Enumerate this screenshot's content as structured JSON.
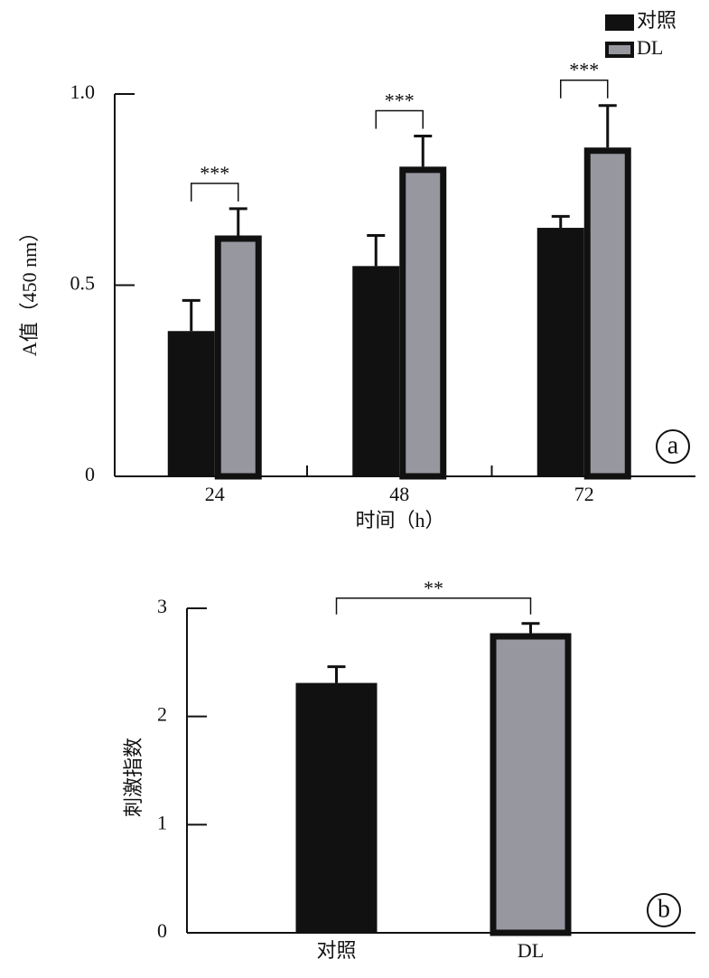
{
  "chart_data": [
    {
      "type": "bar",
      "panel_label": "a",
      "y_label": "A值（450 nm）",
      "x_label": "时间（h）",
      "categories": [
        "24",
        "48",
        "72"
      ],
      "series": [
        {
          "name": "对照",
          "color": "#111111",
          "values": [
            0.38,
            0.55,
            0.65
          ],
          "errors": [
            0.08,
            0.08,
            0.03
          ]
        },
        {
          "name": "DL",
          "color": "#97979f",
          "values": [
            0.63,
            0.81,
            0.86
          ],
          "errors": [
            0.07,
            0.08,
            0.11
          ]
        }
      ],
      "annotations": [
        "***",
        "***",
        "***"
      ],
      "ylim": [
        0,
        1
      ],
      "yticks": [
        0,
        0.5,
        {
          "value": 1,
          "label": "1.0"
        }
      ],
      "legend": "top-right"
    },
    {
      "type": "bar",
      "panel_label": "b",
      "y_label": "刺激指数",
      "categories": [
        "对照",
        "DL"
      ],
      "colors": [
        "#111111",
        "#97979f"
      ],
      "values": [
        2.31,
        2.77
      ],
      "errors": [
        0.15,
        0.09
      ],
      "annotations": [
        "**"
      ],
      "ylim": [
        0,
        3
      ],
      "yticks": [
        0,
        1,
        2,
        3
      ]
    }
  ]
}
